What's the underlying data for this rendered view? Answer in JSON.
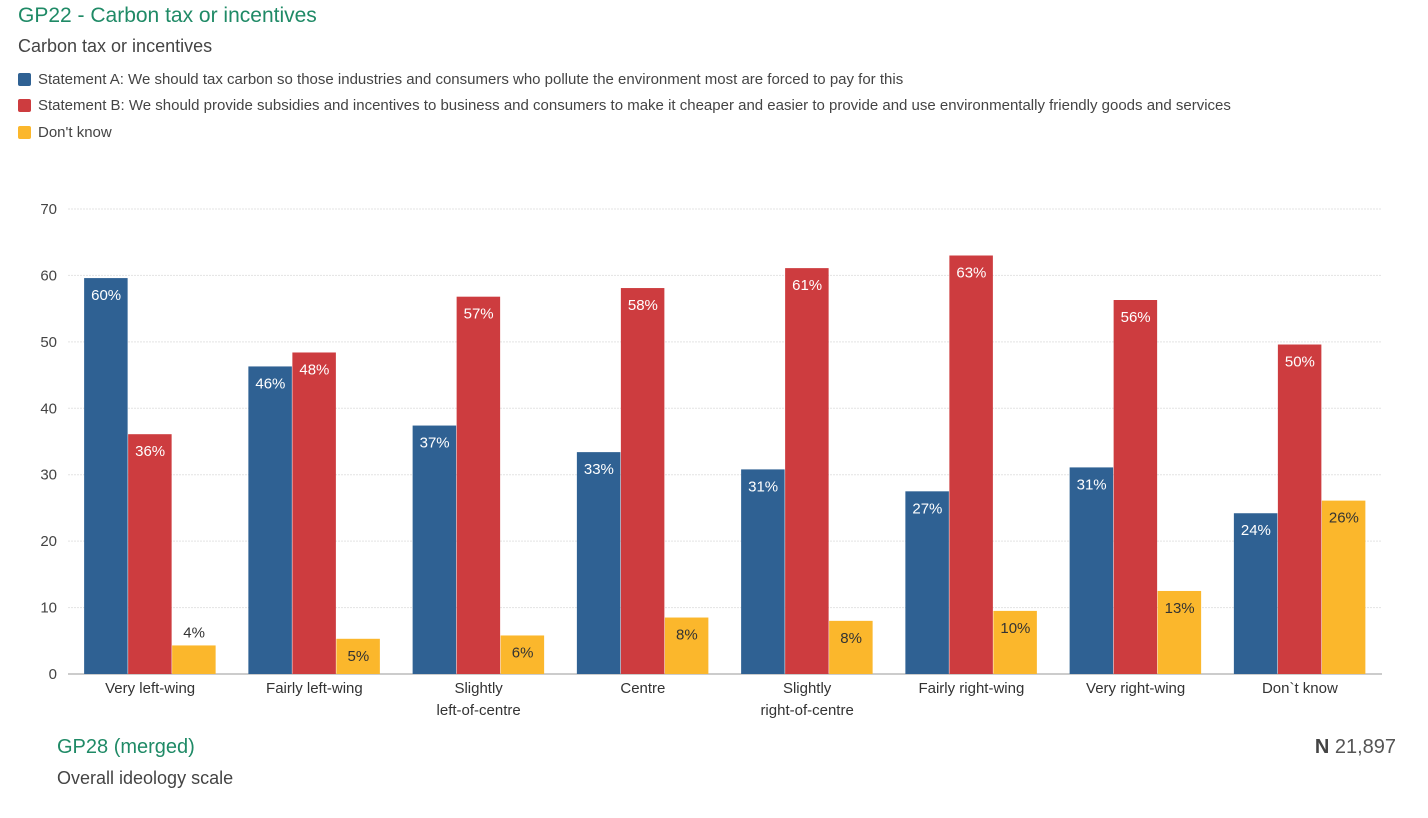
{
  "header": {
    "title": "GP22 - Carbon tax or incentives",
    "subtitle": "Carbon tax or incentives"
  },
  "footer": {
    "variable": "GP28 (merged)",
    "description": "Overall ideology scale",
    "n_label": "N",
    "n_value": "21,897"
  },
  "colors": {
    "statement_a": "#2f6193",
    "statement_b": "#cd3c3f",
    "dont_know": "#fbb72c",
    "title": "#1f8a66"
  },
  "chart_data": {
    "type": "bar",
    "title": "GP22 - Carbon tax or incentives",
    "subtitle": "Carbon tax or incentives",
    "xlabel": "",
    "ylabel": "",
    "ylim": [
      0,
      70
    ],
    "yticks": [
      0,
      10,
      20,
      30,
      40,
      50,
      60,
      70
    ],
    "grid": true,
    "legend_position": "top-left",
    "categories": [
      [
        "Very left-wing"
      ],
      [
        "Fairly left-wing"
      ],
      [
        "Slightly",
        "left-of-centre"
      ],
      [
        "Centre"
      ],
      [
        "Slightly",
        "right-of-centre"
      ],
      [
        "Fairly right-wing"
      ],
      [
        "Very right-wing"
      ],
      [
        "Don`t know"
      ]
    ],
    "series": [
      {
        "name": "Statement A: We should tax carbon so those industries and consumers who pollute the environment most are forced to pay for this",
        "color": "#2f6193",
        "values": [
          59.6,
          46.3,
          37.4,
          33.4,
          30.8,
          27.5,
          31.1,
          24.2
        ],
        "labels": [
          "60%",
          "46%",
          "37%",
          "33%",
          "31%",
          "27%",
          "31%",
          "24%"
        ]
      },
      {
        "name": "Statement B: We should provide subsidies and incentives to business and consumers to make it cheaper and easier to provide and use environmentally friendly goods and services",
        "color": "#cd3c3f",
        "values": [
          36.1,
          48.4,
          56.8,
          58.1,
          61.1,
          63.0,
          56.3,
          49.6
        ],
        "labels": [
          "36%",
          "48%",
          "57%",
          "58%",
          "61%",
          "63%",
          "56%",
          "50%"
        ]
      },
      {
        "name": "Don't know",
        "color": "#fbb72c",
        "values": [
          4.3,
          5.3,
          5.8,
          8.5,
          8.0,
          9.5,
          12.5,
          26.1
        ],
        "labels": [
          "4%",
          "5%",
          "6%",
          "8%",
          "8%",
          "10%",
          "13%",
          "26%"
        ]
      }
    ]
  }
}
